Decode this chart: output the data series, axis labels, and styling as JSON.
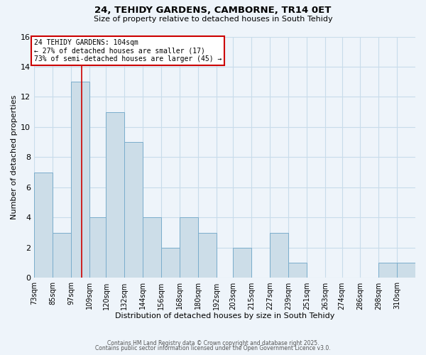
{
  "title1": "24, TEHIDY GARDENS, CAMBORNE, TR14 0ET",
  "title2": "Size of property relative to detached houses in South Tehidy",
  "xlabel": "Distribution of detached houses by size in South Tehidy",
  "ylabel": "Number of detached properties",
  "bin_labels": [
    "73sqm",
    "85sqm",
    "97sqm",
    "109sqm",
    "120sqm",
    "132sqm",
    "144sqm",
    "156sqm",
    "168sqm",
    "180sqm",
    "192sqm",
    "203sqm",
    "215sqm",
    "227sqm",
    "239sqm",
    "251sqm",
    "263sqm",
    "274sqm",
    "286sqm",
    "298sqm",
    "310sqm"
  ],
  "bin_edges": [
    73,
    85,
    97,
    109,
    120,
    132,
    144,
    156,
    168,
    180,
    192,
    203,
    215,
    227,
    239,
    251,
    263,
    274,
    286,
    298,
    310,
    322
  ],
  "bar_heights": [
    7,
    3,
    13,
    4,
    11,
    9,
    4,
    2,
    4,
    3,
    0,
    2,
    0,
    3,
    1,
    0,
    0,
    0,
    0,
    1,
    1
  ],
  "bar_color": "#ccdde8",
  "bar_edge_color": "#7aadcc",
  "vline_x": 104,
  "vline_color": "#cc0000",
  "ylim": [
    0,
    16
  ],
  "yticks": [
    0,
    2,
    4,
    6,
    8,
    10,
    12,
    14,
    16
  ],
  "annotation_title": "24 TEHIDY GARDENS: 104sqm",
  "annotation_line1": "← 27% of detached houses are smaller (17)",
  "annotation_line2": "73% of semi-detached houses are larger (45) →",
  "annotation_box_color": "#ffffff",
  "annotation_box_edge": "#cc0000",
  "grid_color": "#c8dcea",
  "bg_color": "#eef4fa",
  "footer1": "Contains HM Land Registry data © Crown copyright and database right 2025.",
  "footer2": "Contains public sector information licensed under the Open Government Licence v3.0."
}
